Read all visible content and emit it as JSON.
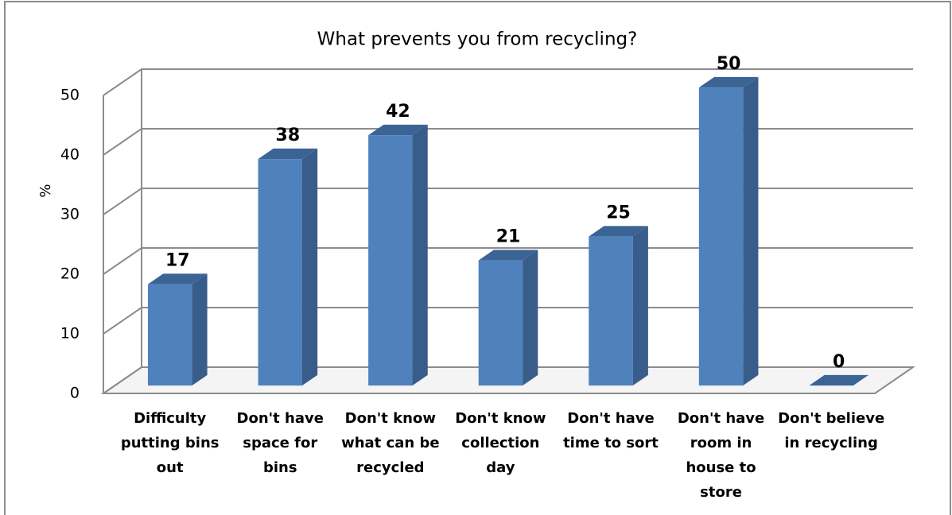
{
  "chart_data": {
    "type": "bar3d",
    "title": "What prevents you from recycling?",
    "y_label": "%",
    "categories": [
      "Difficulty putting bins out",
      "Don't have space for bins",
      "Don't know what can be recycled",
      "Don't know collection day",
      "Don't have time to sort",
      "Don't have room in house to store",
      "Don't believe in recycling"
    ],
    "values": [
      17,
      38,
      42,
      21,
      25,
      50,
      0
    ],
    "color": "#4f81bd",
    "ylim": [
      0,
      50
    ],
    "yticks": [
      0,
      10,
      20,
      30,
      40,
      50
    ],
    "grid": true
  }
}
